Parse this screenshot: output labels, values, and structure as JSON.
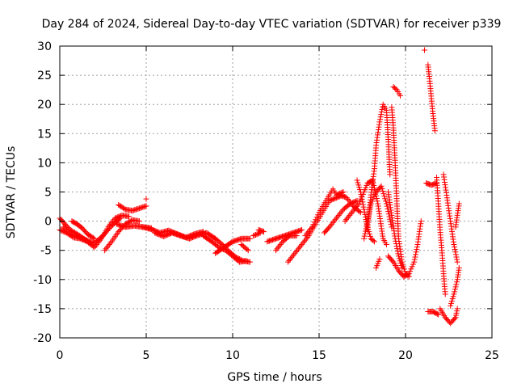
{
  "chart_data": {
    "type": "scatter",
    "title": "Day 284 of 2024, Sidereal Day-to-day VTEC variation (SDTVAR) for receiver p339",
    "xlabel": "GPS time / hours",
    "ylabel": "SDTVAR / TECUs",
    "xlim": [
      0,
      25
    ],
    "ylim": [
      -20,
      30
    ],
    "xticks": [
      0,
      5,
      10,
      15,
      20,
      25
    ],
    "yticks": [
      -20,
      -15,
      -10,
      -5,
      0,
      5,
      10,
      15,
      20,
      25,
      30
    ],
    "grid": true,
    "marker": "+",
    "color": "#ff0000",
    "tracks": [
      [
        [
          0.0,
          -1.5
        ],
        [
          0.4,
          -2.0
        ],
        [
          0.8,
          -2.8
        ],
        [
          1.2,
          -3.0
        ],
        [
          1.6,
          -3.5
        ],
        [
          2.0,
          -4.5
        ],
        [
          2.4,
          -3.0
        ],
        [
          2.8,
          -1.0
        ],
        [
          3.2,
          0.5
        ],
        [
          3.6,
          1.0
        ],
        [
          4.0,
          0.8
        ]
      ],
      [
        [
          0.0,
          0.5
        ],
        [
          0.3,
          -0.5
        ],
        [
          0.6,
          -1.5
        ],
        [
          1.0,
          -2.2
        ],
        [
          1.4,
          -3.0
        ],
        [
          1.8,
          -4.0
        ]
      ],
      [
        [
          0.2,
          -1.0
        ],
        [
          0.6,
          -2.2
        ],
        [
          1.0,
          -2.6
        ],
        [
          1.5,
          -3.2
        ],
        [
          2.0,
          -3.8
        ],
        [
          2.5,
          -2.5
        ],
        [
          3.0,
          -0.8
        ],
        [
          3.5,
          0.5
        ]
      ],
      [
        [
          0.7,
          0.0
        ],
        [
          1.0,
          -0.5
        ],
        [
          1.3,
          -1.2
        ],
        [
          1.6,
          -2.2
        ],
        [
          2.0,
          -3.0
        ]
      ],
      [
        [
          2.6,
          -5.0
        ],
        [
          3.0,
          -3.5
        ],
        [
          3.4,
          -1.8
        ],
        [
          3.8,
          -0.5
        ],
        [
          4.2,
          0.2
        ],
        [
          4.6,
          0.0
        ]
      ],
      [
        [
          3.4,
          2.8
        ],
        [
          3.8,
          2.0
        ],
        [
          4.2,
          1.8
        ],
        [
          4.6,
          2.2
        ],
        [
          5.0,
          2.6
        ]
      ],
      [
        [
          3.3,
          -0.5
        ],
        [
          3.8,
          -1.0
        ],
        [
          4.3,
          -0.8
        ],
        [
          4.8,
          -1.0
        ],
        [
          5.3,
          -1.2
        ]
      ],
      [
        [
          5.0,
          3.8
        ]
      ],
      [
        [
          4.8,
          -1.0
        ],
        [
          5.3,
          -1.4
        ],
        [
          5.8,
          -2.0
        ],
        [
          6.3,
          -1.6
        ],
        [
          6.8,
          -2.2
        ],
        [
          7.3,
          -2.8
        ],
        [
          7.8,
          -2.2
        ],
        [
          8.3,
          -1.8
        ]
      ],
      [
        [
          5.5,
          -2.0
        ],
        [
          6.0,
          -2.6
        ],
        [
          6.5,
          -2.0
        ],
        [
          7.0,
          -2.5
        ],
        [
          7.5,
          -3.0
        ],
        [
          8.0,
          -2.4
        ],
        [
          8.5,
          -2.0
        ],
        [
          9.0,
          -3.0
        ]
      ],
      [
        [
          8.3,
          -2.5
        ],
        [
          8.8,
          -3.5
        ],
        [
          9.2,
          -4.5
        ],
        [
          9.6,
          -5.0
        ],
        [
          10.0,
          -6.0
        ],
        [
          10.4,
          -7.0
        ],
        [
          10.8,
          -6.8
        ]
      ],
      [
        [
          9.0,
          -3.0
        ],
        [
          9.4,
          -4.0
        ],
        [
          9.8,
          -5.2
        ],
        [
          10.2,
          -6.2
        ],
        [
          10.6,
          -6.8
        ],
        [
          11.0,
          -7.0
        ]
      ],
      [
        [
          9.0,
          -5.5
        ],
        [
          9.5,
          -4.5
        ],
        [
          10.0,
          -3.5
        ],
        [
          10.5,
          -3.0
        ],
        [
          11.0,
          -3.0
        ]
      ],
      [
        [
          10.5,
          -4.0
        ],
        [
          10.9,
          -5.0
        ]
      ],
      [
        [
          11.2,
          -2.5
        ],
        [
          11.6,
          -2.0
        ]
      ],
      [
        [
          11.5,
          -1.5
        ],
        [
          11.8,
          -1.8
        ]
      ],
      [
        [
          12.0,
          -3.5
        ],
        [
          12.5,
          -3.0
        ],
        [
          13.0,
          -2.5
        ],
        [
          13.5,
          -2.0
        ],
        [
          14.0,
          -1.5
        ]
      ],
      [
        [
          12.5,
          -5.0
        ],
        [
          12.9,
          -3.5
        ],
        [
          13.3,
          -2.5
        ],
        [
          13.7,
          -2.5
        ]
      ],
      [
        [
          13.2,
          -7.0
        ],
        [
          13.6,
          -5.5
        ],
        [
          14.0,
          -4.0
        ],
        [
          14.4,
          -2.5
        ],
        [
          14.8,
          -0.5
        ],
        [
          15.2,
          1.5
        ],
        [
          15.6,
          3.5
        ],
        [
          16.0,
          4.0
        ],
        [
          16.4,
          4.5
        ]
      ],
      [
        [
          14.2,
          -2.5
        ],
        [
          14.6,
          -1.0
        ],
        [
          15.0,
          1.5
        ],
        [
          15.4,
          3.5
        ],
        [
          15.8,
          5.5
        ],
        [
          16.0,
          4.5
        ],
        [
          16.4,
          5.0
        ]
      ],
      [
        [
          15.3,
          -2.0
        ],
        [
          15.6,
          -1.0
        ],
        [
          16.0,
          0.5
        ],
        [
          16.4,
          2.0
        ],
        [
          16.8,
          3.0
        ],
        [
          17.2,
          3.5
        ]
      ],
      [
        [
          16.2,
          4.5
        ],
        [
          16.6,
          4.0
        ],
        [
          17.0,
          2.5
        ],
        [
          17.4,
          1.5
        ]
      ],
      [
        [
          16.5,
          0.0
        ],
        [
          16.9,
          1.5
        ],
        [
          17.3,
          3.0
        ],
        [
          17.6,
          5.0
        ],
        [
          17.8,
          6.5
        ],
        [
          18.1,
          7.0
        ],
        [
          18.4,
          3.0
        ],
        [
          18.7,
          -3.0
        ],
        [
          18.9,
          -4.0
        ]
      ],
      [
        [
          17.8,
          -1.5
        ],
        [
          18.0,
          4.5
        ],
        [
          18.2,
          9.0
        ],
        [
          18.3,
          13.0
        ],
        [
          18.5,
          17.0
        ],
        [
          18.7,
          20.0
        ],
        [
          18.9,
          19.0
        ],
        [
          19.0,
          14.0
        ],
        [
          19.1,
          8.0
        ]
      ],
      [
        [
          17.6,
          -3.0
        ],
        [
          17.8,
          0.0
        ],
        [
          18.0,
          3.0
        ],
        [
          18.3,
          5.0
        ],
        [
          18.6,
          6.0
        ],
        [
          18.9,
          3.0
        ],
        [
          19.2,
          -1.0
        ]
      ],
      [
        [
          17.2,
          7.0
        ],
        [
          17.4,
          5.0
        ],
        [
          17.6,
          2.0
        ],
        [
          17.8,
          -1.0
        ],
        [
          18.0,
          -3.0
        ],
        [
          18.2,
          -3.5
        ]
      ],
      [
        [
          19.2,
          19.5
        ],
        [
          19.3,
          16.0
        ],
        [
          19.4,
          10.0
        ],
        [
          19.5,
          3.0
        ],
        [
          19.6,
          -3.0
        ],
        [
          19.8,
          -7.0
        ],
        [
          20.0,
          -9.0
        ],
        [
          20.2,
          -9.5
        ]
      ],
      [
        [
          19.0,
          5.0
        ],
        [
          19.2,
          1.0
        ],
        [
          19.4,
          -3.0
        ],
        [
          19.6,
          -6.0
        ],
        [
          19.8,
          -8.0
        ]
      ],
      [
        [
          19.0,
          -6.0
        ],
        [
          19.3,
          -7.0
        ],
        [
          19.6,
          -8.5
        ],
        [
          19.9,
          -9.5
        ],
        [
          20.2,
          -9.0
        ],
        [
          20.5,
          -7.0
        ],
        [
          20.7,
          -4.0
        ],
        [
          20.9,
          0.0
        ]
      ],
      [
        [
          19.3,
          23.0
        ],
        [
          19.5,
          22.5
        ],
        [
          19.7,
          21.5
        ]
      ],
      [
        [
          18.3,
          -8.0
        ],
        [
          18.5,
          -6.5
        ]
      ],
      [
        [
          21.1,
          29.3
        ]
      ],
      [
        [
          21.3,
          26.8
        ],
        [
          21.4,
          24.0
        ],
        [
          21.5,
          21.0
        ],
        [
          21.6,
          18.0
        ],
        [
          21.7,
          15.5
        ]
      ],
      [
        [
          21.3,
          -15.5
        ],
        [
          21.6,
          -15.5
        ],
        [
          21.9,
          -16.0
        ]
      ],
      [
        [
          21.2,
          6.5
        ],
        [
          21.5,
          6.2
        ],
        [
          21.8,
          6.5
        ]
      ],
      [
        [
          21.8,
          7.5
        ],
        [
          21.9,
          3.0
        ],
        [
          22.0,
          -1.5
        ],
        [
          22.1,
          -5.0
        ],
        [
          22.2,
          -9.0
        ],
        [
          22.3,
          -12.5
        ]
      ],
      [
        [
          22.0,
          -15.0
        ],
        [
          22.3,
          -16.5
        ],
        [
          22.6,
          -17.5
        ],
        [
          22.9,
          -16.5
        ],
        [
          23.0,
          -15.0
        ]
      ],
      [
        [
          22.2,
          8.0
        ],
        [
          22.4,
          4.0
        ],
        [
          22.6,
          0.0
        ],
        [
          22.8,
          -4.0
        ],
        [
          23.0,
          -7.0
        ]
      ],
      [
        [
          22.6,
          -14.5
        ],
        [
          22.8,
          -12.5
        ],
        [
          23.0,
          -10.0
        ],
        [
          23.1,
          -8.0
        ]
      ],
      [
        [
          22.9,
          -1.0
        ],
        [
          23.0,
          1.0
        ],
        [
          23.1,
          3.0
        ]
      ]
    ]
  }
}
